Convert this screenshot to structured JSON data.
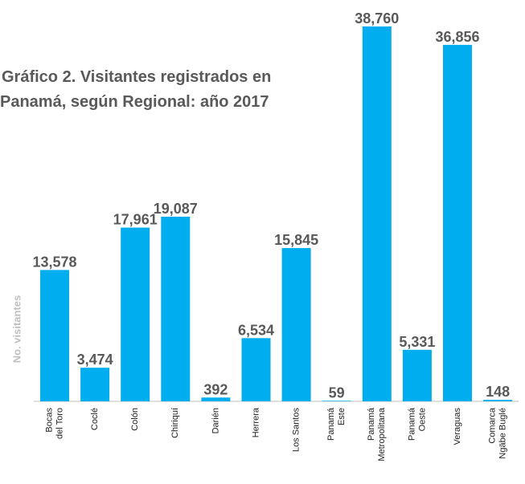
{
  "chart_data": {
    "type": "bar",
    "title": [
      "Gráfico 2. Visitantes registrados en",
      "Panamá, según Regional: año 2017"
    ],
    "y_label": "No. visitantes",
    "categories": [
      [
        "Bocas",
        "del Toro"
      ],
      [
        "Coclé"
      ],
      [
        "Colón"
      ],
      [
        "Chiriquí"
      ],
      [
        "Darién"
      ],
      [
        "Herrera"
      ],
      [
        "Los Santos"
      ],
      [
        "Panamá",
        "Este"
      ],
      [
        "Panamá",
        "Metropolitana"
      ],
      [
        "Panamá",
        "Oeste"
      ],
      [
        "Veraguas"
      ],
      [
        "Comarca",
        "Ngäbe Buglé"
      ]
    ],
    "values": [
      13578,
      3474,
      17961,
      19087,
      392,
      6534,
      15845,
      59,
      38760,
      5331,
      36856,
      148
    ],
    "value_labels": [
      "13,578",
      "3,474",
      "17,961",
      "19,087",
      "392",
      "6,534",
      "15,845",
      "59",
      "38,760",
      "5,331",
      "36,856",
      "148"
    ],
    "color": "#00adef",
    "ylim": [
      0,
      40000
    ]
  }
}
